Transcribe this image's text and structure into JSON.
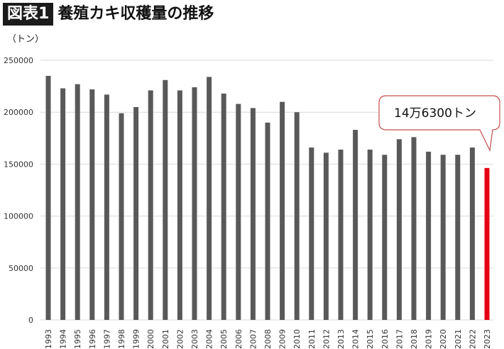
{
  "header": {
    "badge": "図表1",
    "title": "養殖カキ収穫量の推移",
    "unit": "（トン）"
  },
  "colors": {
    "bar": "#595959",
    "highlight": "#e60012",
    "grid": "#d9d9d9",
    "callout_border": "#c0504d"
  },
  "chart_data": {
    "type": "bar",
    "title": "養殖カキ収穫量の推移",
    "xlabel": "",
    "ylabel": "（トン）",
    "ylim": [
      0,
      250000
    ],
    "yticks": [
      0,
      50000,
      100000,
      150000,
      200000,
      250000
    ],
    "grid": true,
    "categories": [
      "1993",
      "1994",
      "1995",
      "1996",
      "1997",
      "1998",
      "1999",
      "2000",
      "2001",
      "2002",
      "2003",
      "2004",
      "2005",
      "2006",
      "2007",
      "2008",
      "2009",
      "2010",
      "2011",
      "2012",
      "2013",
      "2014",
      "2015",
      "2016",
      "2017",
      "2018",
      "2019",
      "2020",
      "2021",
      "2022",
      "2023"
    ],
    "values": [
      235000,
      223000,
      227000,
      222000,
      217000,
      199000,
      205000,
      221000,
      231000,
      221000,
      224000,
      234000,
      218000,
      208000,
      204000,
      190000,
      210000,
      200000,
      166000,
      161000,
      164000,
      183000,
      164000,
      159000,
      174000,
      176000,
      162000,
      159000,
      159000,
      166000,
      146300
    ],
    "highlight_index": 30,
    "annotation": "14万6300トン"
  }
}
